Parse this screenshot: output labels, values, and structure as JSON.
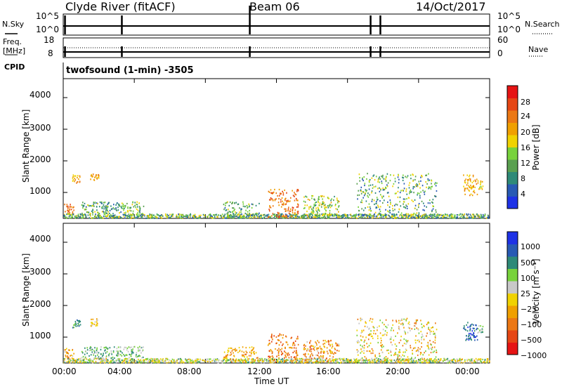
{
  "header": {
    "station": "Clyde River (fitACF)",
    "beam": "Beam 06",
    "date": "14/Oct/2017"
  },
  "top_panels": {
    "nsky_label": "N.Sky",
    "nsky_ticks": [
      "10^5",
      "10^0"
    ],
    "nsearch_label": "N.Search",
    "nsearch_ticks": [
      "10^5",
      "10^0"
    ],
    "freq_label": "Freq.",
    "freq_unit": "[MHz]",
    "freq_ticks": [
      "18",
      "8"
    ],
    "nave_label": "Nave",
    "nave_ticks": [
      "60",
      "0"
    ],
    "cpid_label": "CPID",
    "cpid_text": "twofsound (1-min) -3505"
  },
  "chart_data": [
    {
      "type": "scatter",
      "name": "power",
      "xlabel": "",
      "ylabel": "Slant Range [km]",
      "ylim": [
        180,
        4600
      ],
      "xlim_hours": [
        0,
        24
      ],
      "y_ticks": [
        "4000",
        "3000",
        "2000",
        "1000"
      ],
      "colorbar": {
        "label": "Power [dB]",
        "range": [
          0,
          32
        ],
        "ticks": [
          "28",
          "24",
          "20",
          "16",
          "12",
          "8",
          "4"
        ],
        "colors": [
          "#1e32e6",
          "#285ab4",
          "#2e8a78",
          "#5aa050",
          "#78d23c",
          "#f0d200",
          "#f0a000",
          "#ec7814",
          "#e64614",
          "#e61414"
        ]
      },
      "clusters": [
        {
          "t0": 0.05,
          "t1": 0.6,
          "r0": 300,
          "r1": 650,
          "p": 7,
          "c": 2
        },
        {
          "t0": 0.5,
          "t1": 0.95,
          "r0": 1300,
          "r1": 1550,
          "p": 6,
          "c": 2
        },
        {
          "t0": 1.5,
          "t1": 2.0,
          "r0": 1350,
          "r1": 1580,
          "p": 6,
          "c": 3
        },
        {
          "t0": 0.0,
          "t1": 24.0,
          "r0": 185,
          "r1": 320,
          "p": 3,
          "c": 5
        },
        {
          "t0": 1.0,
          "t1": 4.5,
          "r0": 330,
          "r1": 700,
          "p": 3,
          "c": 4
        },
        {
          "t0": 9.0,
          "t1": 11.0,
          "r0": 200,
          "r1": 700,
          "p": 3,
          "c": 4
        },
        {
          "t0": 11.5,
          "t1": 13.2,
          "r0": 200,
          "r1": 1100,
          "p": 7,
          "c": 3
        },
        {
          "t0": 13.5,
          "t1": 15.5,
          "r0": 200,
          "r1": 900,
          "p": 4,
          "c": 4
        },
        {
          "t0": 16.5,
          "t1": 21.0,
          "r0": 250,
          "r1": 1600,
          "p": 3,
          "c": 5
        },
        {
          "t0": 22.5,
          "t1": 23.3,
          "r0": 900,
          "r1": 1550,
          "p": 6,
          "c": 3
        },
        {
          "t0": 23.3,
          "t1": 23.6,
          "r0": 1100,
          "r1": 1400,
          "p": 5,
          "c": 2
        }
      ]
    },
    {
      "type": "scatter",
      "name": "velocity",
      "xlabel": "Time UT",
      "ylabel": "Slant Range [km]",
      "ylim": [
        180,
        4600
      ],
      "xlim_hours": [
        0,
        24
      ],
      "y_ticks": [
        "4000",
        "3000",
        "2000",
        "1000"
      ],
      "x_ticks": [
        "00:00",
        "04:00",
        "08:00",
        "12:00",
        "16:00",
        "20:00",
        "00:00"
      ],
      "colorbar": {
        "label": "Velocity [m s⁻¹]",
        "range": [
          0,
          10
        ],
        "ticks": [
          "1000",
          "500",
          "100",
          "25",
          "−25",
          "−100",
          "−500",
          "−1000"
        ],
        "colors": [
          "#e61414",
          "#e64614",
          "#ec7814",
          "#f0a000",
          "#f0d200",
          "#c8c8c8",
          "#78d23c",
          "#2e8a78",
          "#285ab4",
          "#1e32e6"
        ]
      },
      "clusters": [
        {
          "t0": 0.05,
          "t1": 0.6,
          "r0": 300,
          "r1": 650,
          "p": 3,
          "c": 4
        },
        {
          "t0": 0.5,
          "t1": 0.95,
          "r0": 1300,
          "r1": 1550,
          "p": 7,
          "c": 2
        },
        {
          "t0": 1.5,
          "t1": 2.0,
          "r0": 1350,
          "r1": 1580,
          "p": 4,
          "c": 3
        },
        {
          "t0": 0.0,
          "t1": 24.0,
          "r0": 185,
          "r1": 320,
          "p": 5,
          "c": 4
        },
        {
          "t0": 1.0,
          "t1": 4.5,
          "r0": 330,
          "r1": 700,
          "p": 6,
          "c": 3
        },
        {
          "t0": 9.0,
          "t1": 11.0,
          "r0": 200,
          "r1": 700,
          "p": 3,
          "c": 3
        },
        {
          "t0": 11.5,
          "t1": 13.2,
          "r0": 200,
          "r1": 1100,
          "p": 2,
          "c": 3
        },
        {
          "t0": 13.5,
          "t1": 15.5,
          "r0": 200,
          "r1": 900,
          "p": 3,
          "c": 4
        },
        {
          "t0": 16.5,
          "t1": 21.0,
          "r0": 250,
          "r1": 1600,
          "p": 4,
          "c": 5
        },
        {
          "t0": 22.5,
          "t1": 23.3,
          "r0": 900,
          "r1": 1550,
          "p": 8,
          "c": 2
        },
        {
          "t0": 23.3,
          "t1": 23.6,
          "r0": 1100,
          "r1": 1400,
          "p": 6,
          "c": 2
        }
      ]
    }
  ]
}
